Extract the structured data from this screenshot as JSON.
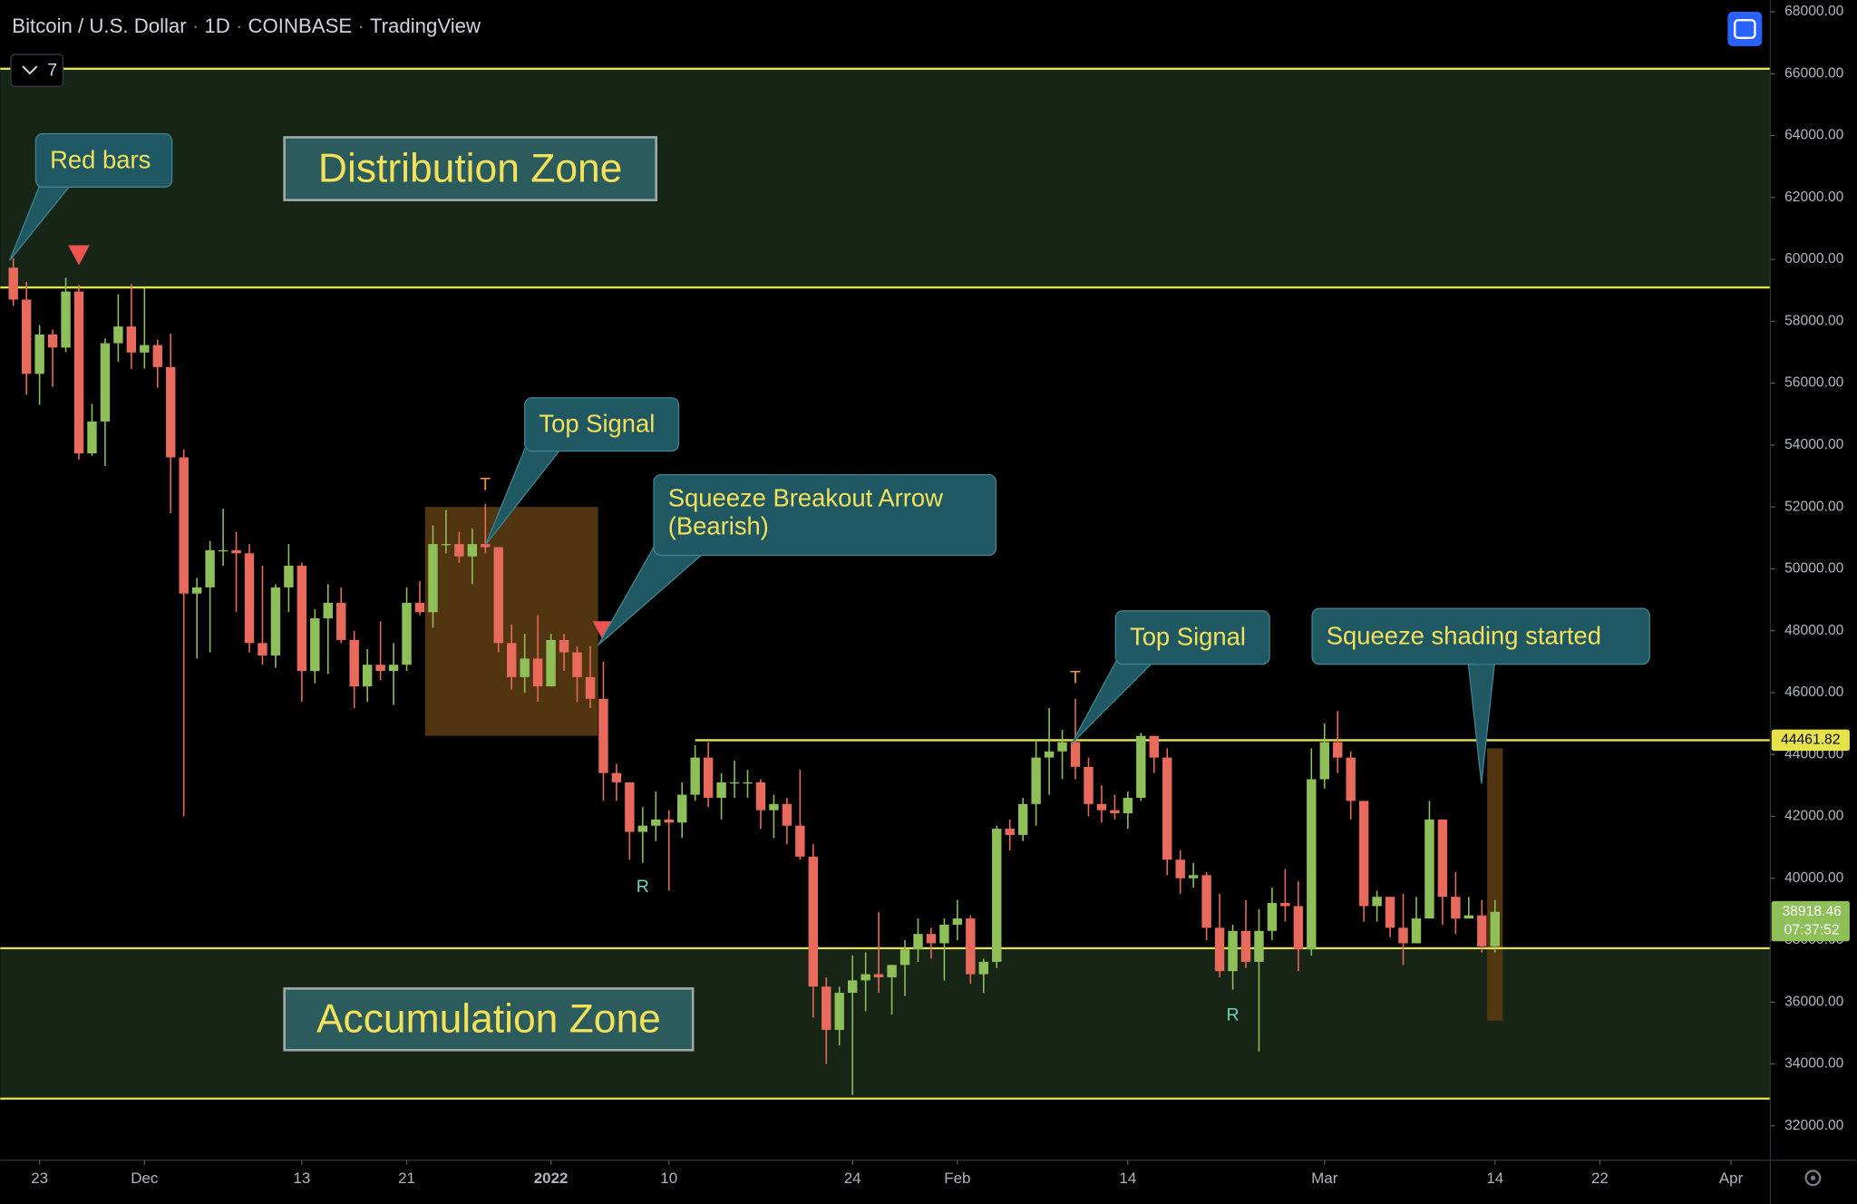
{
  "chart_data": {
    "type": "candlestick",
    "symbol": "Bitcoin / U.S. Dollar",
    "interval": "1D",
    "exchange": "COINBASE",
    "source": "TradingView",
    "separator": "·",
    "indicator_count": 7,
    "countdown": "07:37:52",
    "up_color": "#8fbf58",
    "down_color": "#e86a5c",
    "level_color": "#e6e24a",
    "zone_color": "#172517",
    "shading_color": "#5a3a12",
    "grid": false,
    "xlim": [
      "2021-11-20",
      "2022-04-04"
    ],
    "ylim": [
      30890,
      68380
    ],
    "xticks": [
      {
        "value": "2021-11-23",
        "label": "23"
      },
      {
        "value": "2021-12-01",
        "label": "Dec"
      },
      {
        "value": "2021-12-13",
        "label": "13"
      },
      {
        "value": "2021-12-21",
        "label": "21"
      },
      {
        "value": "2022-01-01",
        "label": "2022"
      },
      {
        "value": "2022-01-10",
        "label": "10"
      },
      {
        "value": "2022-01-24",
        "label": "24"
      },
      {
        "value": "2022-02-01",
        "label": "Feb"
      },
      {
        "value": "2022-02-14",
        "label": "14"
      },
      {
        "value": "2022-03-01",
        "label": "Mar"
      },
      {
        "value": "2022-03-14",
        "label": "14"
      },
      {
        "value": "2022-03-22",
        "label": "22"
      },
      {
        "value": "2022-04-01",
        "label": "Apr"
      }
    ],
    "yticks": [
      {
        "value": 32000,
        "label": "32000.00"
      },
      {
        "value": 34000,
        "label": "34000.00"
      },
      {
        "value": 36000,
        "label": "36000.00"
      },
      {
        "value": 38000,
        "label": "38000.00"
      },
      {
        "value": 40000,
        "label": "40000.00"
      },
      {
        "value": 42000,
        "label": "42000.00"
      },
      {
        "value": 44000,
        "label": "44000.00"
      },
      {
        "value": 46000,
        "label": "46000.00"
      },
      {
        "value": 48000,
        "label": "48000.00"
      },
      {
        "value": 50000,
        "label": "50000.00"
      },
      {
        "value": 52000,
        "label": "52000.00"
      },
      {
        "value": 54000,
        "label": "54000.00"
      },
      {
        "value": 56000,
        "label": "56000.00"
      },
      {
        "value": 58000,
        "label": "58000.00"
      },
      {
        "value": 60000,
        "label": "60000.00"
      },
      {
        "value": 62000,
        "label": "62000.00"
      },
      {
        "value": 64000,
        "label": "64000.00"
      },
      {
        "value": 66000,
        "label": "66000.00"
      },
      {
        "value": 68000,
        "label": "68000.00"
      }
    ],
    "zones": [
      {
        "from": 59090,
        "to": 66160,
        "label": "Distribution Zone"
      },
      {
        "from": 32880,
        "to": 37740,
        "label": "Accumulation Zone"
      }
    ],
    "levels": [
      {
        "value": 66160
      },
      {
        "value": 59090
      },
      {
        "value": 44461.82,
        "from": "2022-01-12"
      },
      {
        "value": 37740
      },
      {
        "value": 32880
      }
    ],
    "shadings": [
      {
        "x0": "2021-12-23",
        "x1": "2022-01-04",
        "low": 44600,
        "high": 52000
      },
      {
        "x0": "2022-03-14",
        "x1": "2022-03-14",
        "low": 35400,
        "high": 44200
      }
    ],
    "signals": [
      {
        "x": "2021-11-26",
        "y": 60150,
        "shape": "triangle-down"
      },
      {
        "x": "2022-01-05",
        "y": 48000,
        "shape": "triangle-down"
      },
      {
        "x": "2021-12-27",
        "y": 52700,
        "text": "T"
      },
      {
        "x": "2022-02-10",
        "y": 46460,
        "text": "T"
      },
      {
        "x": "2022-01-08",
        "y": 39700,
        "text": "R"
      },
      {
        "x": "2022-02-22",
        "y": 35560,
        "text": "R"
      }
    ],
    "callouts": [
      [
        "Red bars"
      ],
      [
        "Top Signal"
      ],
      [
        "Squeeze Breakout Arrow",
        "(Bearish)"
      ],
      [
        "Top Signal"
      ],
      [
        "Squeeze shading started"
      ]
    ],
    "x": [
      "2021-11-21",
      "2021-11-22",
      "2021-11-23",
      "2021-11-24",
      "2021-11-25",
      "2021-11-26",
      "2021-11-27",
      "2021-11-28",
      "2021-11-29",
      "2021-11-30",
      "2021-12-01",
      "2021-12-02",
      "2021-12-03",
      "2021-12-04",
      "2021-12-05",
      "2021-12-06",
      "2021-12-07",
      "2021-12-08",
      "2021-12-09",
      "2021-12-10",
      "2021-12-11",
      "2021-12-12",
      "2021-12-13",
      "2021-12-14",
      "2021-12-15",
      "2021-12-16",
      "2021-12-17",
      "2021-12-18",
      "2021-12-19",
      "2021-12-20",
      "2021-12-21",
      "2021-12-22",
      "2021-12-23",
      "2021-12-24",
      "2021-12-25",
      "2021-12-26",
      "2021-12-27",
      "2021-12-28",
      "2021-12-29",
      "2021-12-30",
      "2021-12-31",
      "2022-01-01",
      "2022-01-02",
      "2022-01-03",
      "2022-01-04",
      "2022-01-05",
      "2022-01-06",
      "2022-01-07",
      "2022-01-08",
      "2022-01-09",
      "2022-01-10",
      "2022-01-11",
      "2022-01-12",
      "2022-01-13",
      "2022-01-14",
      "2022-01-15",
      "2022-01-16",
      "2022-01-17",
      "2022-01-18",
      "2022-01-19",
      "2022-01-20",
      "2022-01-21",
      "2022-01-22",
      "2022-01-23",
      "2022-01-24",
      "2022-01-25",
      "2022-01-26",
      "2022-01-27",
      "2022-01-28",
      "2022-01-29",
      "2022-01-30",
      "2022-01-31",
      "2022-02-01",
      "2022-02-02",
      "2022-02-03",
      "2022-02-04",
      "2022-02-05",
      "2022-02-06",
      "2022-02-07",
      "2022-02-08",
      "2022-02-09",
      "2022-02-10",
      "2022-02-11",
      "2022-02-12",
      "2022-02-13",
      "2022-02-14",
      "2022-02-15",
      "2022-02-16",
      "2022-02-17",
      "2022-02-18",
      "2022-02-19",
      "2022-02-20",
      "2022-02-21",
      "2022-02-22",
      "2022-02-23",
      "2022-02-24",
      "2022-02-25",
      "2022-02-26",
      "2022-02-27",
      "2022-02-28",
      "2022-03-01",
      "2022-03-02",
      "2022-03-03",
      "2022-03-04",
      "2022-03-05",
      "2022-03-06",
      "2022-03-07",
      "2022-03-08",
      "2022-03-09",
      "2022-03-10",
      "2022-03-11",
      "2022-03-12",
      "2022-03-13",
      "2022-03-14"
    ],
    "candles": [
      [
        59730,
        60030,
        58500,
        58700
      ],
      [
        58700,
        59270,
        55630,
        56300
      ],
      [
        56300,
        57870,
        55300,
        57570
      ],
      [
        57570,
        57730,
        55880,
        57150
      ],
      [
        57150,
        59400,
        57000,
        58960
      ],
      [
        58960,
        59170,
        53530,
        53730
      ],
      [
        53730,
        55330,
        53650,
        54760
      ],
      [
        54760,
        57440,
        53320,
        57290
      ],
      [
        57290,
        58870,
        56700,
        57830
      ],
      [
        57830,
        59200,
        56460,
        56990
      ],
      [
        56990,
        59070,
        56470,
        57230
      ],
      [
        57230,
        57400,
        55850,
        56520
      ],
      [
        56520,
        57600,
        51800,
        53600
      ],
      [
        53600,
        53860,
        42000,
        49200
      ],
      [
        49200,
        49700,
        47100,
        49400
      ],
      [
        49400,
        50900,
        47300,
        50600
      ],
      [
        50600,
        51940,
        50100,
        50600
      ],
      [
        50600,
        51200,
        48600,
        50500
      ],
      [
        50500,
        50800,
        47300,
        47600
      ],
      [
        47600,
        50100,
        46900,
        47200
      ],
      [
        47200,
        49500,
        46800,
        49400
      ],
      [
        49400,
        50800,
        48600,
        50100
      ],
      [
        50100,
        50200,
        45700,
        46700
      ],
      [
        46700,
        48700,
        46300,
        48400
      ],
      [
        48400,
        49500,
        46600,
        48900
      ],
      [
        48900,
        49400,
        47600,
        47700
      ],
      [
        47700,
        48000,
        45500,
        46200
      ],
      [
        46200,
        47400,
        45700,
        46900
      ],
      [
        46900,
        48300,
        46400,
        46700
      ],
      [
        46700,
        47600,
        45600,
        46900
      ],
      [
        46900,
        49400,
        46700,
        48900
      ],
      [
        48900,
        49600,
        48500,
        48600
      ],
      [
        48600,
        51400,
        48100,
        50800
      ],
      [
        50800,
        51900,
        50500,
        50800
      ],
      [
        50800,
        51200,
        50200,
        50400
      ],
      [
        50400,
        51300,
        49500,
        50800
      ],
      [
        50800,
        52100,
        50500,
        50700
      ],
      [
        50700,
        50700,
        47300,
        47600
      ],
      [
        47600,
        48200,
        46100,
        46500
      ],
      [
        46500,
        47900,
        46000,
        47100
      ],
      [
        47100,
        48500,
        45700,
        46200
      ],
      [
        46200,
        47900,
        46200,
        47700
      ],
      [
        47700,
        47900,
        46700,
        47300
      ],
      [
        47300,
        47500,
        45700,
        46500
      ],
      [
        46500,
        47500,
        45500,
        45800
      ],
      [
        45800,
        47000,
        42500,
        43400
      ],
      [
        43400,
        43700,
        42500,
        43100
      ],
      [
        43100,
        43100,
        40600,
        41500
      ],
      [
        41500,
        42300,
        40500,
        41700
      ],
      [
        41700,
        42800,
        41200,
        41900
      ],
      [
        41900,
        42200,
        39600,
        41800
      ],
      [
        41800,
        43100,
        41300,
        42700
      ],
      [
        42700,
        44300,
        42500,
        43900
      ],
      [
        43900,
        44400,
        42300,
        42600
      ],
      [
        42600,
        43400,
        41900,
        43100
      ],
      [
        43100,
        43800,
        42600,
        43100
      ],
      [
        43100,
        43500,
        42600,
        43100
      ],
      [
        43100,
        43200,
        41600,
        42200
      ],
      [
        42200,
        42700,
        41300,
        42400
      ],
      [
        42400,
        42600,
        41100,
        41700
      ],
      [
        41700,
        43500,
        40600,
        40700
      ],
      [
        40700,
        41100,
        35500,
        36500
      ],
      [
        36500,
        36800,
        34000,
        35100
      ],
      [
        35100,
        36500,
        34600,
        36300
      ],
      [
        36300,
        37500,
        33000,
        36700
      ],
      [
        36700,
        37600,
        35700,
        36900
      ],
      [
        36900,
        38900,
        36300,
        36800
      ],
      [
        36800,
        37200,
        35600,
        37200
      ],
      [
        37200,
        38000,
        36200,
        37700
      ],
      [
        37700,
        38700,
        37300,
        38200
      ],
      [
        38200,
        38400,
        37400,
        37900
      ],
      [
        37900,
        38700,
        36700,
        38500
      ],
      [
        38500,
        39300,
        38000,
        38700
      ],
      [
        38700,
        38800,
        36600,
        36900
      ],
      [
        36900,
        37400,
        36300,
        37300
      ],
      [
        37300,
        41700,
        37100,
        41600
      ],
      [
        41600,
        41900,
        40900,
        41400
      ],
      [
        41400,
        42600,
        41200,
        42400
      ],
      [
        42400,
        44500,
        41700,
        43900
      ],
      [
        43900,
        45500,
        42700,
        44100
      ],
      [
        44100,
        44800,
        43200,
        44400
      ],
      [
        44400,
        45800,
        43200,
        43600
      ],
      [
        43600,
        43900,
        42000,
        42400
      ],
      [
        42400,
        43000,
        41800,
        42200
      ],
      [
        42200,
        42700,
        41900,
        42100
      ],
      [
        42100,
        42800,
        41600,
        42600
      ],
      [
        42600,
        44700,
        42500,
        44600
      ],
      [
        44600,
        44600,
        43400,
        43900
      ],
      [
        43900,
        44200,
        40100,
        40600
      ],
      [
        40600,
        40900,
        39500,
        40000
      ],
      [
        40000,
        40500,
        39700,
        40100
      ],
      [
        40100,
        40200,
        38000,
        38400
      ],
      [
        38400,
        39500,
        36800,
        37000
      ],
      [
        37000,
        38500,
        36400,
        38300
      ],
      [
        38300,
        39300,
        37100,
        37300
      ],
      [
        37300,
        39000,
        34400,
        38300
      ],
      [
        38300,
        39700,
        38000,
        39200
      ],
      [
        39200,
        40300,
        38600,
        39100
      ],
      [
        39100,
        39900,
        37000,
        37700
      ],
      [
        37700,
        44200,
        37500,
        43200
      ],
      [
        43200,
        45000,
        42900,
        44400
      ],
      [
        44400,
        45400,
        43400,
        43900
      ],
      [
        43900,
        44100,
        41900,
        42500
      ],
      [
        42500,
        42500,
        38600,
        39100
      ],
      [
        39100,
        39600,
        38600,
        39400
      ],
      [
        39400,
        39400,
        38100,
        38400
      ],
      [
        38400,
        39500,
        37200,
        37900
      ],
      [
        37900,
        39400,
        37900,
        38700
      ],
      [
        38700,
        42500,
        38700,
        41900
      ],
      [
        41900,
        41900,
        38500,
        39400
      ],
      [
        39400,
        40200,
        38200,
        38700
      ],
      [
        38700,
        39400,
        38700,
        38800
      ],
      [
        38800,
        39300,
        37600,
        37800
      ],
      [
        37800,
        39300,
        37600,
        38918.46
      ]
    ]
  }
}
